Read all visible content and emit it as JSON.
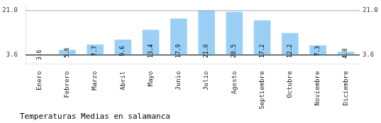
{
  "chart_data": {
    "type": "bar",
    "title": "Temperaturas Medias en salamanca",
    "categories": [
      "Enero",
      "Febrero",
      "Marzo",
      "Abril",
      "Mayo",
      "Junio",
      "Julio",
      "Agosto",
      "Septiembre",
      "Octubre",
      "Noviembre",
      "Diciembre"
    ],
    "values": [
      3.6,
      5.6,
      7.7,
      9.6,
      13.4,
      17.9,
      21.0,
      20.5,
      17.2,
      12.2,
      7.3,
      4.8
    ],
    "value_labels": [
      "3.6",
      "5.6",
      "7.7",
      "9.6",
      "13.4",
      "17.9",
      "21.0",
      "20.5",
      "17.2",
      "12.2",
      "7.3",
      "4.8"
    ],
    "base": 3.6,
    "ylim": [
      0,
      23.5
    ],
    "grid": false,
    "data_labels": true,
    "tick_labels": "x",
    "annotations": [
      {
        "y": 21.0,
        "label": "21.0"
      },
      {
        "y": 3.6,
        "label": "3.6"
      }
    ]
  }
}
